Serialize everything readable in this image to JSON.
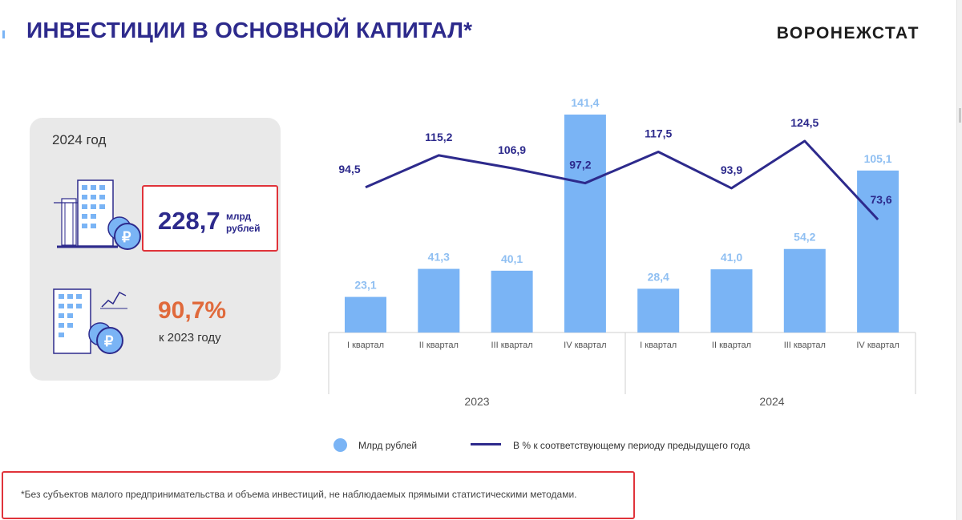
{
  "header": {
    "title": "ИНВЕСТИЦИИ В ОСНОВНОЙ КАПИТАЛ*",
    "brand": "ВОРОНЕЖСТАТ"
  },
  "panel": {
    "year": "2024 год",
    "kpi_value": "228,7",
    "kpi_unit_line1": "млрд",
    "kpi_unit_line2": "рублей",
    "pct_value": "90,7%",
    "pct_caption": "к 2023 году"
  },
  "legend": {
    "bars": "Млрд рублей",
    "line": "В % к соответствующему периоду предыдущего года"
  },
  "footnote": "*Без субъектов малого предпринимательства и объема инвестиций, не наблюдаемых прямыми статистическими методами.",
  "colors": {
    "bar": "#7ab4f5",
    "bar_label": "#8fbff2",
    "line": "#2d2a8c",
    "title": "#2d2a8c",
    "highlight_border": "#e0333a",
    "pct": "#e06a3c"
  },
  "chart_data": {
    "type": "bar",
    "categories": [
      "I квартал",
      "II квартал",
      "III квартал",
      "IV квартал",
      "I квартал",
      "II квартал",
      "III квартал",
      "IV квартал"
    ],
    "groups": [
      "2023",
      "2024"
    ],
    "series": [
      {
        "name": "Млрд рублей",
        "type": "bar",
        "values": [
          23.1,
          41.3,
          40.1,
          141.4,
          28.4,
          41.0,
          54.2,
          105.1
        ],
        "labels": [
          "23,1",
          "41,3",
          "40,1",
          "141,4",
          "28,4",
          "41,0",
          "54,2",
          "105,1"
        ]
      },
      {
        "name": "В % к соответствующему периоду предыдущего года",
        "type": "line",
        "values": [
          94.5,
          115.2,
          106.9,
          97.2,
          117.5,
          93.9,
          124.5,
          73.6
        ],
        "labels": [
          "94,5",
          "115,2",
          "106,9",
          "97,2",
          "117,5",
          "93,9",
          "124,5",
          "73,6"
        ]
      }
    ],
    "legend_position": "bottom"
  }
}
